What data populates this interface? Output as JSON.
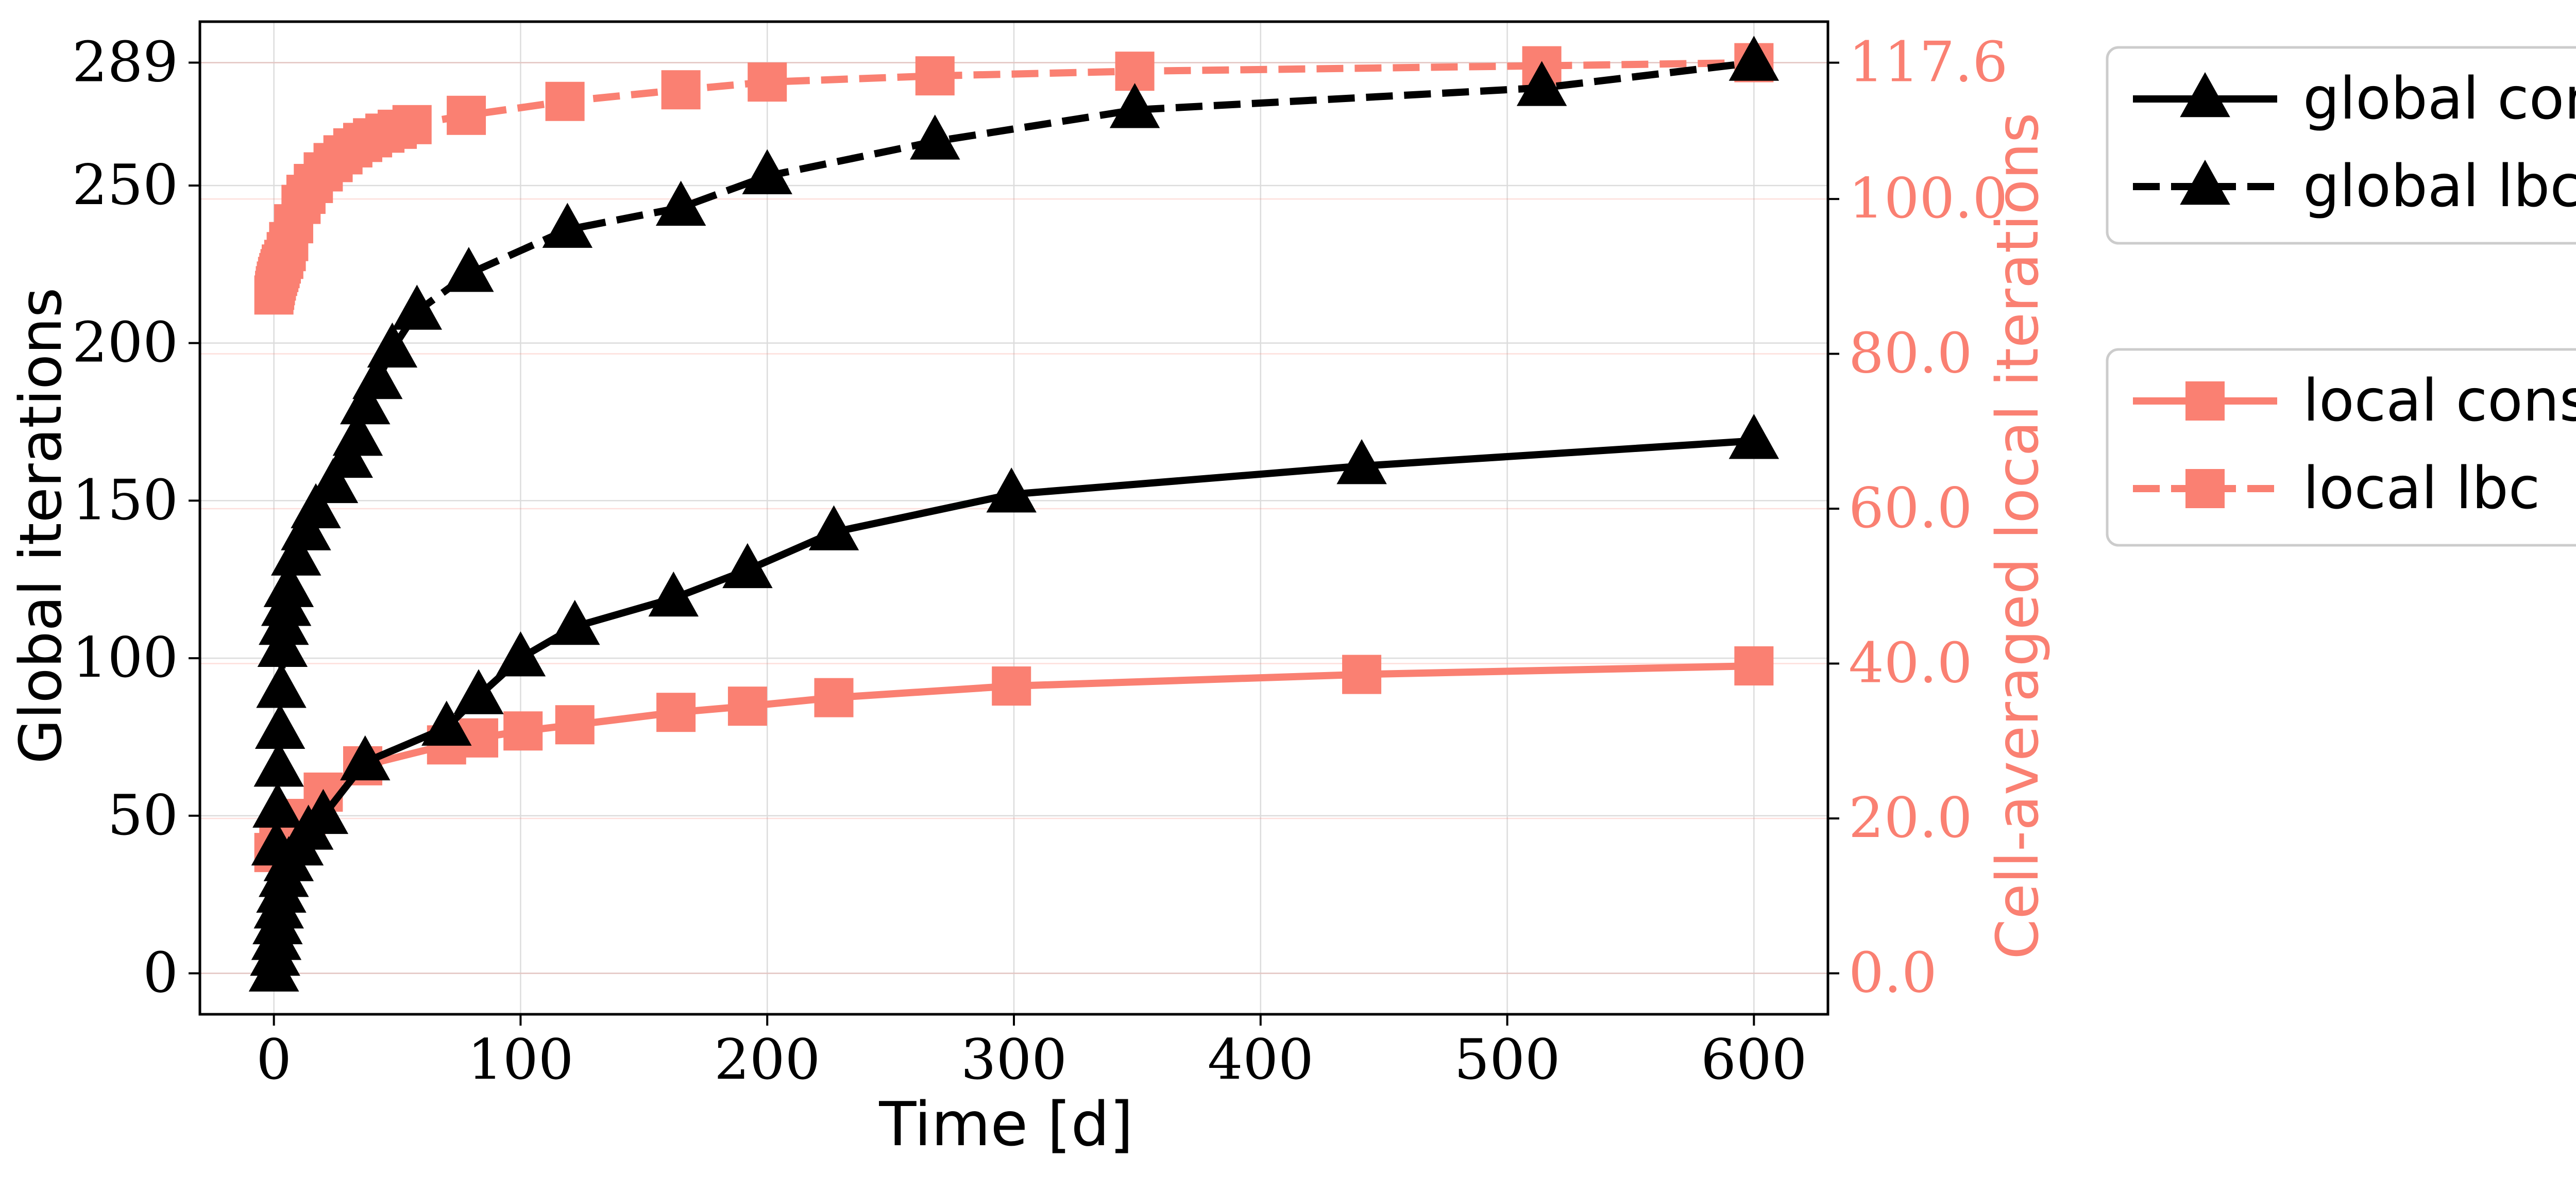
{
  "chart_data": {
    "type": "line",
    "xlabel": "Time [d]",
    "ylabel_left": "Global iterations",
    "ylabel_right": "Cell-averaged local iterations",
    "xlim": [
      -30,
      630
    ],
    "ylim_left": [
      -13,
      302
    ],
    "ylim_right": [
      -5.29,
      122.9
    ],
    "x_ticks": [
      0,
      100,
      200,
      300,
      400,
      500,
      600
    ],
    "x_tick_labels": [
      "0",
      "100",
      "200",
      "300",
      "400",
      "500",
      "600"
    ],
    "y_left_ticks": [
      0,
      50,
      100,
      150,
      200,
      250,
      289
    ],
    "y_left_tick_labels": [
      "0",
      "50",
      "100",
      "150",
      "200",
      "250",
      "289"
    ],
    "y_right_ticks": [
      0,
      20,
      40,
      60,
      80,
      100,
      117.6
    ],
    "y_right_tick_labels": [
      "0.0",
      "20.0",
      "40.0",
      "60.0",
      "80.0",
      "100.0",
      "117.6"
    ],
    "grid": true,
    "legend_global": {
      "placement": "outside-top-right",
      "entries": [
        "global const",
        "global lbc"
      ]
    },
    "legend_local": {
      "placement": "outside-right",
      "entries": [
        "local const",
        "local lbc"
      ]
    },
    "colors": {
      "global": "#000000",
      "local": "#fa8072",
      "right_axis": "#fa8072"
    },
    "series": [
      {
        "name": "global const",
        "axis": "left",
        "style": "solid",
        "marker": "triangle",
        "x": [
          0,
          0.5,
          1,
          1.5,
          2,
          3,
          4,
          6,
          10,
          14,
          20,
          37,
          70,
          83,
          100,
          122,
          162,
          192,
          227,
          299,
          441,
          600
        ],
        "y": [
          0,
          5,
          10,
          15,
          20,
          25,
          30,
          35,
          40,
          45,
          50,
          67,
          78,
          88,
          100,
          110,
          119,
          128,
          140,
          152,
          161,
          169
        ]
      },
      {
        "name": "global lbc",
        "axis": "left",
        "style": "dashed",
        "marker": "triangle",
        "x": [
          0,
          1,
          1.5,
          2,
          2.5,
          3,
          3.5,
          4,
          5,
          6,
          9,
          13,
          17,
          24,
          30,
          34,
          37,
          42,
          48,
          58,
          79,
          119,
          165,
          200,
          268,
          349,
          514,
          600
        ],
        "y": [
          0,
          40,
          52,
          65,
          77,
          90,
          103,
          110,
          116,
          122,
          132,
          140,
          147,
          155,
          163,
          170,
          180,
          188,
          198,
          210,
          222,
          236,
          243,
          253,
          264,
          274,
          281,
          289
        ]
      },
      {
        "name": "local const",
        "axis": "right",
        "style": "solid",
        "marker": "square",
        "x": [
          0,
          2,
          4,
          7,
          10,
          13,
          20,
          36,
          70,
          83,
          101,
          122,
          163,
          192,
          227,
          299,
          441,
          600
        ],
        "y": [
          15.6,
          16.4,
          17.2,
          18.0,
          18.9,
          20.0,
          23.4,
          26.8,
          29.5,
          30.4,
          31.3,
          32.1,
          33.7,
          34.5,
          35.6,
          37.1,
          38.6,
          39.7
        ]
      },
      {
        "name": "local lbc",
        "axis": "right",
        "style": "dashed",
        "marker": "square",
        "x": [
          0,
          0.3,
          0.6,
          1,
          1.5,
          2,
          2.5,
          3,
          4,
          5,
          6,
          8,
          11,
          13,
          16,
          20,
          24,
          28,
          32,
          36,
          40,
          45,
          50,
          56,
          78,
          118,
          165,
          200,
          268,
          349,
          514,
          600
        ],
        "y": [
          87.6,
          88.2,
          88.8,
          89.4,
          90.0,
          90.5,
          91.0,
          91.6,
          92.2,
          93.2,
          94.5,
          96.8,
          99.3,
          100.6,
          102.0,
          103.5,
          104.7,
          105.7,
          106.6,
          107.3,
          107.9,
          108.5,
          109.0,
          109.6,
          110.8,
          112.6,
          114.1,
          115.1,
          115.9,
          116.5,
          117.2,
          117.6
        ]
      }
    ]
  }
}
